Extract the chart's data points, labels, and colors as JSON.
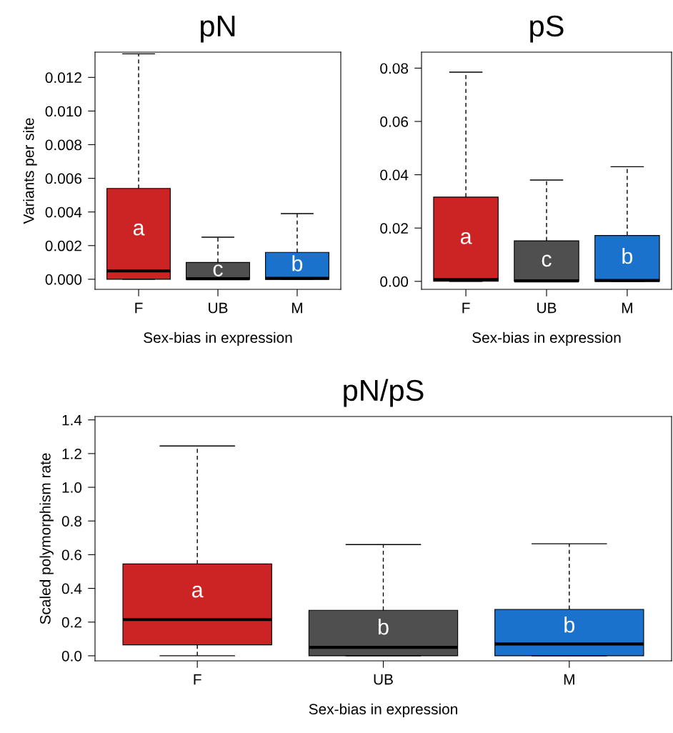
{
  "chart_data": [
    {
      "type": "box",
      "title": "pN",
      "xlabel": "Sex-bias in expression",
      "ylabel": "Variants per site",
      "categories": [
        "F",
        "UB",
        "M"
      ],
      "colors": [
        "#cc2424",
        "#4f4f4f",
        "#1a72cc"
      ],
      "boxes": [
        {
          "low": 0,
          "q1": 0,
          "median": 0.0005,
          "q3": 0.0054,
          "high": 0.0134
        },
        {
          "low": 0,
          "q1": 0,
          "median": 3e-05,
          "q3": 0.001,
          "high": 0.0025
        },
        {
          "low": 0,
          "q1": 0,
          "median": 5e-05,
          "q3": 0.0016,
          "high": 0.0039
        }
      ],
      "ylim": [
        -0.0006,
        0.0135
      ],
      "yticks": [
        {
          "value": 0,
          "label": "0.000"
        },
        {
          "value": 0.002,
          "label": "0.002"
        },
        {
          "value": 0.004,
          "label": "0.004"
        },
        {
          "value": 0.006,
          "label": "0.006"
        },
        {
          "value": 0.008,
          "label": "0.008"
        },
        {
          "value": 0.01,
          "label": "0.010"
        },
        {
          "value": 0.012,
          "label": "0.012"
        }
      ],
      "annotations": [
        "a",
        "c",
        "b"
      ],
      "grid": false
    },
    {
      "type": "box",
      "title": "pS",
      "xlabel": "Sex-bias in expression",
      "categories": [
        "F",
        "UB",
        "M"
      ],
      "colors": [
        "#cc2424",
        "#4f4f4f",
        "#1a72cc"
      ],
      "boxes": [
        {
          "low": 0,
          "q1": 0,
          "median": 0.0007,
          "q3": 0.0316,
          "high": 0.0785
        },
        {
          "low": 0,
          "q1": 0,
          "median": 0.0002,
          "q3": 0.0152,
          "high": 0.038
        },
        {
          "low": 0,
          "q1": 0,
          "median": 0.0003,
          "q3": 0.0172,
          "high": 0.043
        }
      ],
      "ylim": [
        -0.003,
        0.086
      ],
      "yticks": [
        {
          "value": 0,
          "label": "0.00"
        },
        {
          "value": 0.02,
          "label": "0.02"
        },
        {
          "value": 0.04,
          "label": "0.04"
        },
        {
          "value": 0.06,
          "label": "0.06"
        },
        {
          "value": 0.08,
          "label": "0.08"
        }
      ],
      "annotations": [
        "a",
        "c",
        "b"
      ],
      "grid": false
    },
    {
      "type": "box",
      "title": "pN/pS",
      "xlabel": "Sex-bias in expression",
      "ylabel": "Scaled polymorphism rate",
      "categories": [
        "F",
        "UB",
        "M"
      ],
      "colors": [
        "#cc2424",
        "#4f4f4f",
        "#1a72cc"
      ],
      "boxes": [
        {
          "low": 0,
          "q1": 0.065,
          "median": 0.215,
          "q3": 0.545,
          "high": 1.245
        },
        {
          "low": 0,
          "q1": 0,
          "median": 0.05,
          "q3": 0.27,
          "high": 0.66
        },
        {
          "low": 0,
          "q1": 0,
          "median": 0.07,
          "q3": 0.275,
          "high": 0.665
        }
      ],
      "ylim": [
        -0.03,
        1.42
      ],
      "yticks": [
        {
          "value": 0,
          "label": "0.0"
        },
        {
          "value": 0.2,
          "label": "0.2"
        },
        {
          "value": 0.4,
          "label": "0.4"
        },
        {
          "value": 0.6,
          "label": "0.6"
        },
        {
          "value": 0.8,
          "label": "0.8"
        },
        {
          "value": 1.0,
          "label": "1.0"
        },
        {
          "value": 1.2,
          "label": "1.2"
        },
        {
          "value": 1.4,
          "label": "1.4"
        }
      ],
      "annotations": [
        "a",
        "b",
        "b"
      ],
      "grid": false
    }
  ]
}
